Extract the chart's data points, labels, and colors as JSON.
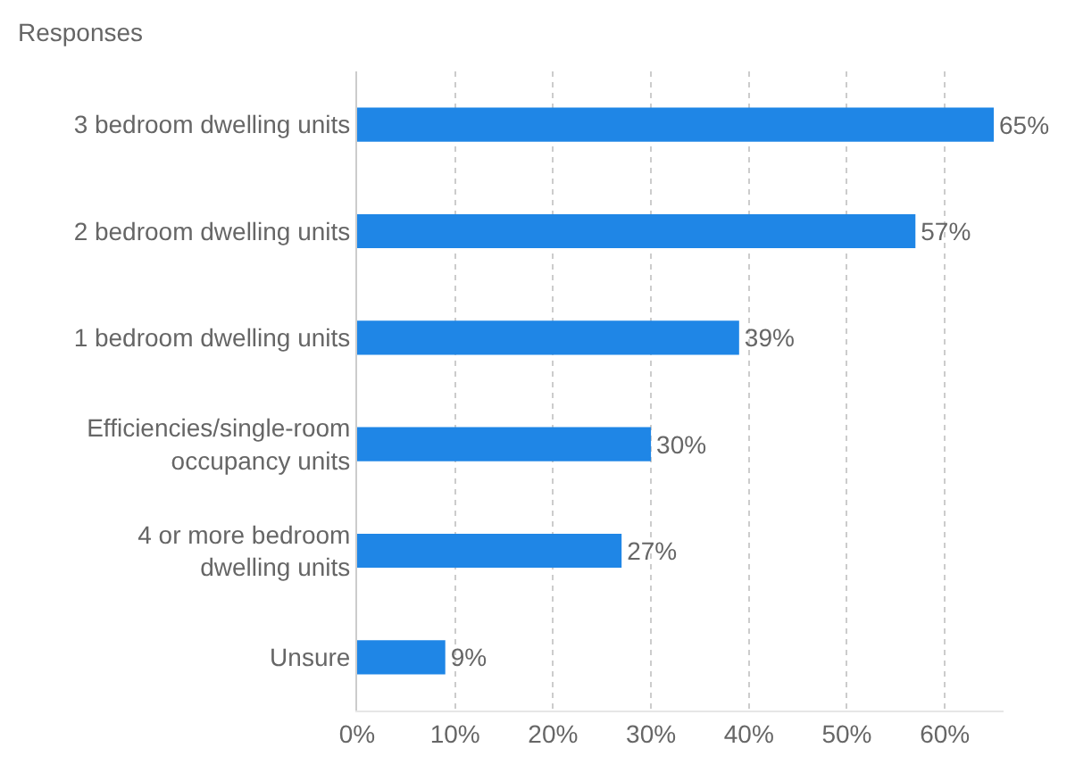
{
  "chart_data": {
    "type": "bar",
    "orientation": "horizontal",
    "ylabel": "Responses",
    "categories": [
      "3 bedroom dwelling units",
      "2 bedroom dwelling units",
      "1 bedroom dwelling units",
      "Efficiencies/single-room occupancy units",
      "4 or more bedroom dwelling units",
      "Unsure"
    ],
    "values": [
      65,
      57,
      39,
      30,
      27,
      9
    ],
    "value_labels": [
      "65%",
      "57%",
      "39%",
      "30%",
      "27%",
      "9%"
    ],
    "color": "#1f86e6",
    "xlim": [
      0,
      66
    ],
    "xticks": [
      {
        "value": 0,
        "label": "0%"
      },
      {
        "value": 10,
        "label": "10%"
      },
      {
        "value": 20,
        "label": "20%"
      },
      {
        "value": 30,
        "label": "30%"
      },
      {
        "value": 40,
        "label": "40%"
      },
      {
        "value": 50,
        "label": "50%"
      },
      {
        "value": 60,
        "label": "60%"
      }
    ],
    "grid": "x",
    "legend": false
  }
}
